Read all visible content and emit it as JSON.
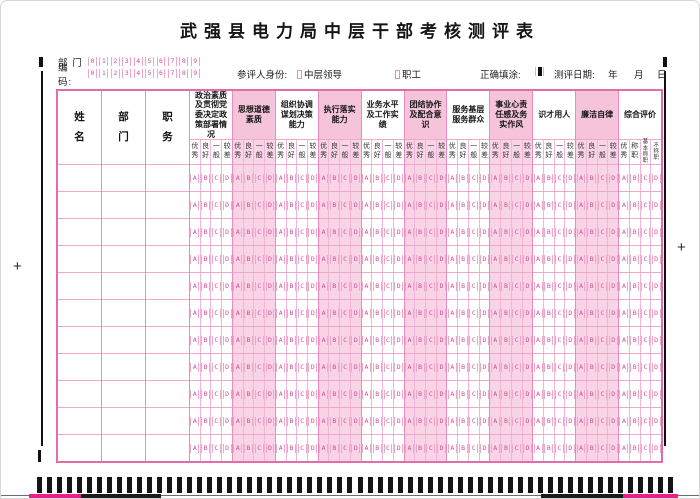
{
  "title": "武强县电力局中层干部考核测评表",
  "header": {
    "dept_label": "部 门",
    "code_label": "编 码:",
    "digits": [
      "0",
      "1",
      "2",
      "3",
      "4",
      "5",
      "6",
      "7",
      "8",
      "9"
    ],
    "identity_label": "参评人身份:",
    "identity_options": [
      {
        "label": "中层领导"
      },
      {
        "label": "职工"
      }
    ],
    "correct_fill_label": "正确填涂:",
    "date_label": "测评日期:",
    "date_units": [
      "年",
      "月",
      "日"
    ]
  },
  "table": {
    "fixed_columns": [
      "姓名",
      "部门",
      "职务"
    ],
    "categories": [
      {
        "label": "政治素质及贯彻党委决定政策部署情况",
        "tinted": false,
        "overall": false
      },
      {
        "label": "思想道德素质",
        "tinted": true,
        "overall": false
      },
      {
        "label": "组织协调谋划决策能力",
        "tinted": false,
        "overall": false
      },
      {
        "label": "执行落实能力",
        "tinted": true,
        "overall": false
      },
      {
        "label": "业务水平及工作实绩",
        "tinted": false,
        "overall": false
      },
      {
        "label": "团结协作及配合意识",
        "tinted": true,
        "overall": false
      },
      {
        "label": "服务基层服务群众",
        "tinted": false,
        "overall": false
      },
      {
        "label": "事业心责任感及务实作风",
        "tinted": true,
        "overall": false
      },
      {
        "label": "识才用人",
        "tinted": false,
        "overall": false
      },
      {
        "label": "廉洁自律",
        "tinted": true,
        "overall": false
      },
      {
        "label": "综合评价",
        "tinted": false,
        "overall": true
      }
    ],
    "rating_labels": [
      "优秀",
      "良好",
      "一般",
      "较差"
    ],
    "overall_labels": [
      "优秀",
      "称职",
      "基本称职",
      "不称职"
    ],
    "options": [
      "A",
      "B",
      "C",
      "D"
    ],
    "data_rows": 11
  },
  "marks": {
    "plus_sign": "+",
    "bottom_bar_count": 64
  },
  "colors": {
    "pink_line": "#ee94c2",
    "pink_fill": "#f9d3e6",
    "bubble_pink": "#d04f96",
    "magenta_strip": "#ec1e8c",
    "black": "#141414"
  }
}
